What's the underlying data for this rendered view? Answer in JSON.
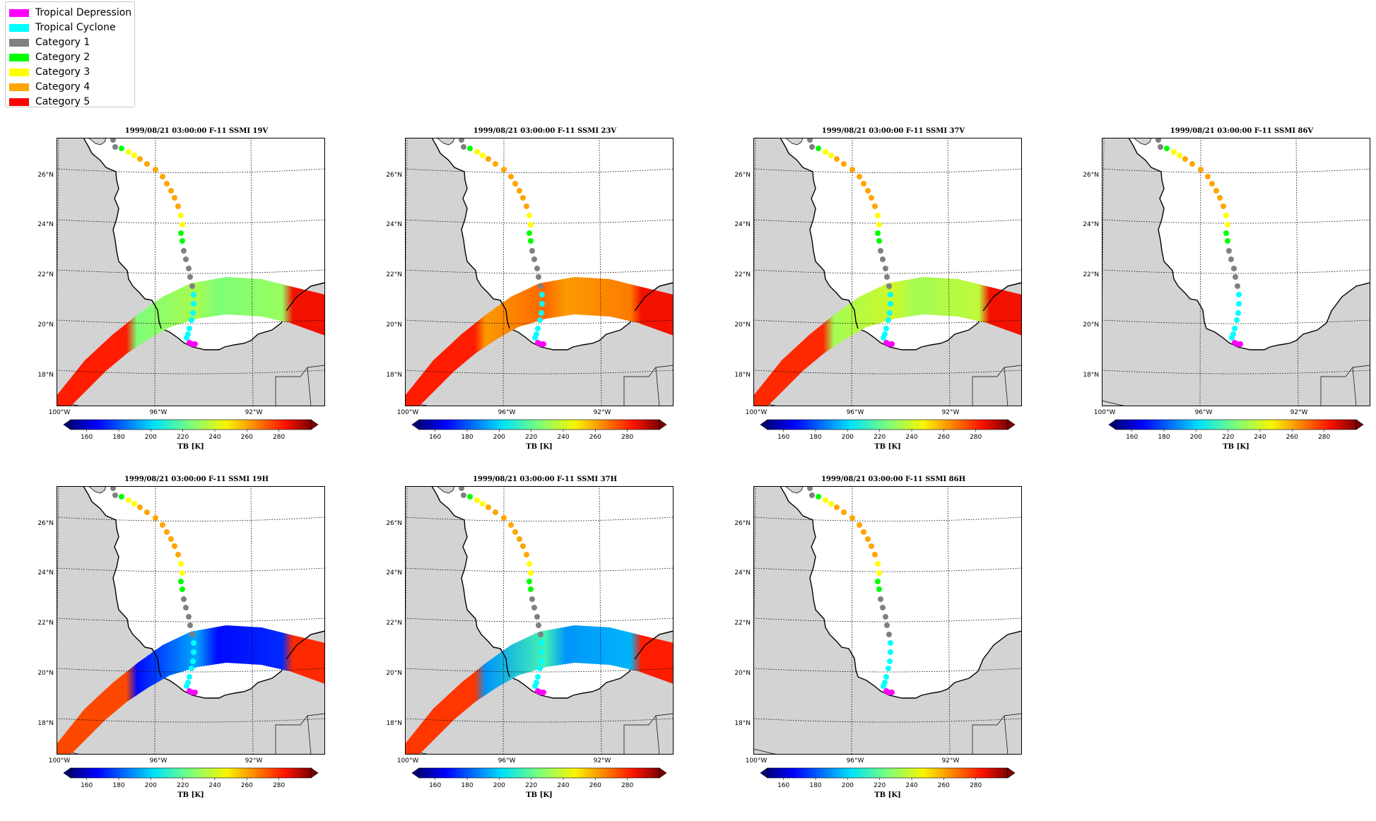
{
  "legend": {
    "items": [
      {
        "label": "Tropical Depression",
        "color": "#ff00ff"
      },
      {
        "label": "Tropical Cyclone",
        "color": "#00ffff"
      },
      {
        "label": "Category 1",
        "color": "#808080"
      },
      {
        "label": "Category 2",
        "color": "#00ff00"
      },
      {
        "label": "Category 3",
        "color": "#ffff00"
      },
      {
        "label": "Category 4",
        "color": "#ffa500"
      },
      {
        "label": "Category 5",
        "color": "#ff0000"
      }
    ]
  },
  "map": {
    "lat_labels": [
      "26°N",
      "24°N",
      "22°N",
      "20°N",
      "18°N"
    ],
    "lon_labels": [
      "100°W",
      "96°W",
      "92°W"
    ],
    "land_color": "#d3d3d3",
    "ocean_color": "#ffffff",
    "track": [
      {
        "cat": 1
      },
      {
        "cat": 1
      },
      {
        "cat": 2
      },
      {
        "cat": 3
      },
      {
        "cat": 3
      },
      {
        "cat": 4
      },
      {
        "cat": 4
      },
      {
        "cat": 4
      },
      {
        "cat": 4
      },
      {
        "cat": 4
      },
      {
        "cat": 4
      },
      {
        "cat": 4
      },
      {
        "cat": 4
      },
      {
        "cat": 3
      },
      {
        "cat": 3
      },
      {
        "cat": 2
      },
      {
        "cat": 2
      },
      {
        "cat": 1
      },
      {
        "cat": 1
      },
      {
        "cat": 1
      },
      {
        "cat": 1
      },
      {
        "cat": 1
      },
      {
        "cat": 0
      },
      {
        "cat": 0
      },
      {
        "cat": 0
      },
      {
        "cat": 0
      },
      {
        "cat": 0
      },
      {
        "cat": 0
      },
      {
        "cat": 0
      },
      {
        "cat": -1
      },
      {
        "cat": -1
      },
      {
        "cat": -1
      }
    ]
  },
  "colorbar": {
    "ticks": [
      "160",
      "180",
      "200",
      "220",
      "240",
      "260",
      "280"
    ],
    "label": "TB [K]",
    "range": [
      150,
      300
    ]
  },
  "panels": [
    {
      "title": "1999/08/21 03:00:00  F-11 SSMI 19V",
      "swath": "19V"
    },
    {
      "title": "1999/08/21 03:00:00  F-11 SSMI 23V",
      "swath": "23V"
    },
    {
      "title": "1999/08/21 03:00:00  F-11 SSMI 37V",
      "swath": "37V"
    },
    {
      "title": "1999/08/21 03:00:00  F-11 SSMI 86V",
      "swath": "none"
    },
    {
      "title": "1999/08/21 03:00:00  F-11 SSMI 19H",
      "swath": "19H"
    },
    {
      "title": "1999/08/21 03:00:00  F-11 SSMI 37H",
      "swath": "37H"
    },
    {
      "title": "1999/08/21 03:00:00  F-11 SSMI 86H",
      "swath": "none"
    }
  ]
}
